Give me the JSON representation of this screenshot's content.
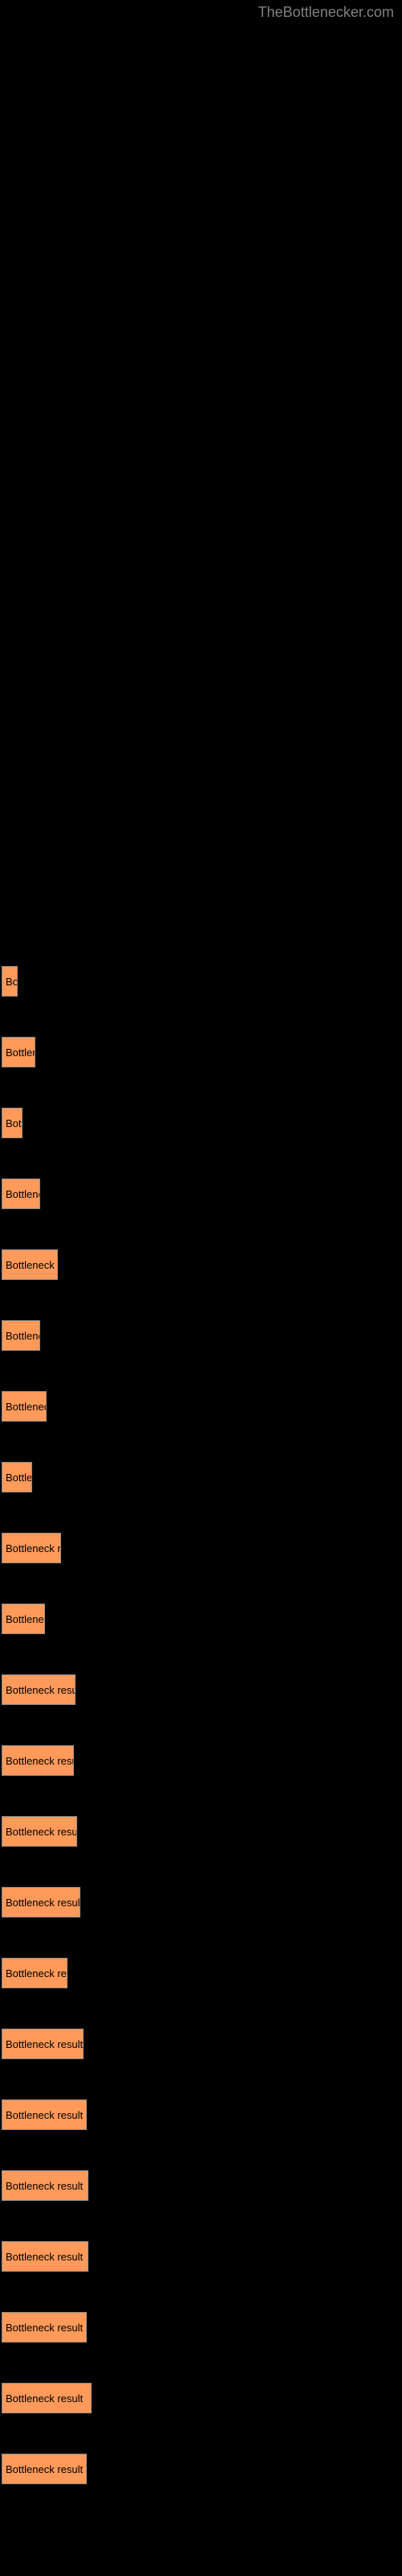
{
  "watermark": "TheBottlenecker.com",
  "chart": {
    "type": "bar-horizontal",
    "background_color": "#000000",
    "bar_color": "#ff9a5a",
    "bar_border_color": "#888888",
    "label_color": "#000000",
    "label_fontsize": 13,
    "watermark_color": "#808080",
    "watermark_fontsize": 18,
    "bars": [
      {
        "label": "Bo",
        "width": 20
      },
      {
        "label": "Bottlene",
        "width": 42
      },
      {
        "label": "Bott",
        "width": 26
      },
      {
        "label": "Bottlened",
        "width": 48
      },
      {
        "label": "Bottleneck re",
        "width": 70
      },
      {
        "label": "Bottlened",
        "width": 48
      },
      {
        "label": "Bottleneck",
        "width": 56
      },
      {
        "label": "Bottlen",
        "width": 38
      },
      {
        "label": "Bottleneck res",
        "width": 74
      },
      {
        "label": "Bottlenecl",
        "width": 54
      },
      {
        "label": "Bottleneck result ",
        "width": 92
      },
      {
        "label": "Bottleneck result",
        "width": 90
      },
      {
        "label": "Bottleneck result",
        "width": 94
      },
      {
        "label": "Bottleneck result",
        "width": 98
      },
      {
        "label": "Bottleneck resu",
        "width": 82
      },
      {
        "label": "Bottleneck result",
        "width": 102
      },
      {
        "label": "Bottleneck result",
        "width": 106
      },
      {
        "label": "Bottleneck result",
        "width": 108
      },
      {
        "label": "Bottleneck result",
        "width": 108
      },
      {
        "label": "Bottleneck result",
        "width": 106
      },
      {
        "label": "Bottleneck result",
        "width": 112
      },
      {
        "label": "Bottleneck result",
        "width": 106
      }
    ]
  }
}
